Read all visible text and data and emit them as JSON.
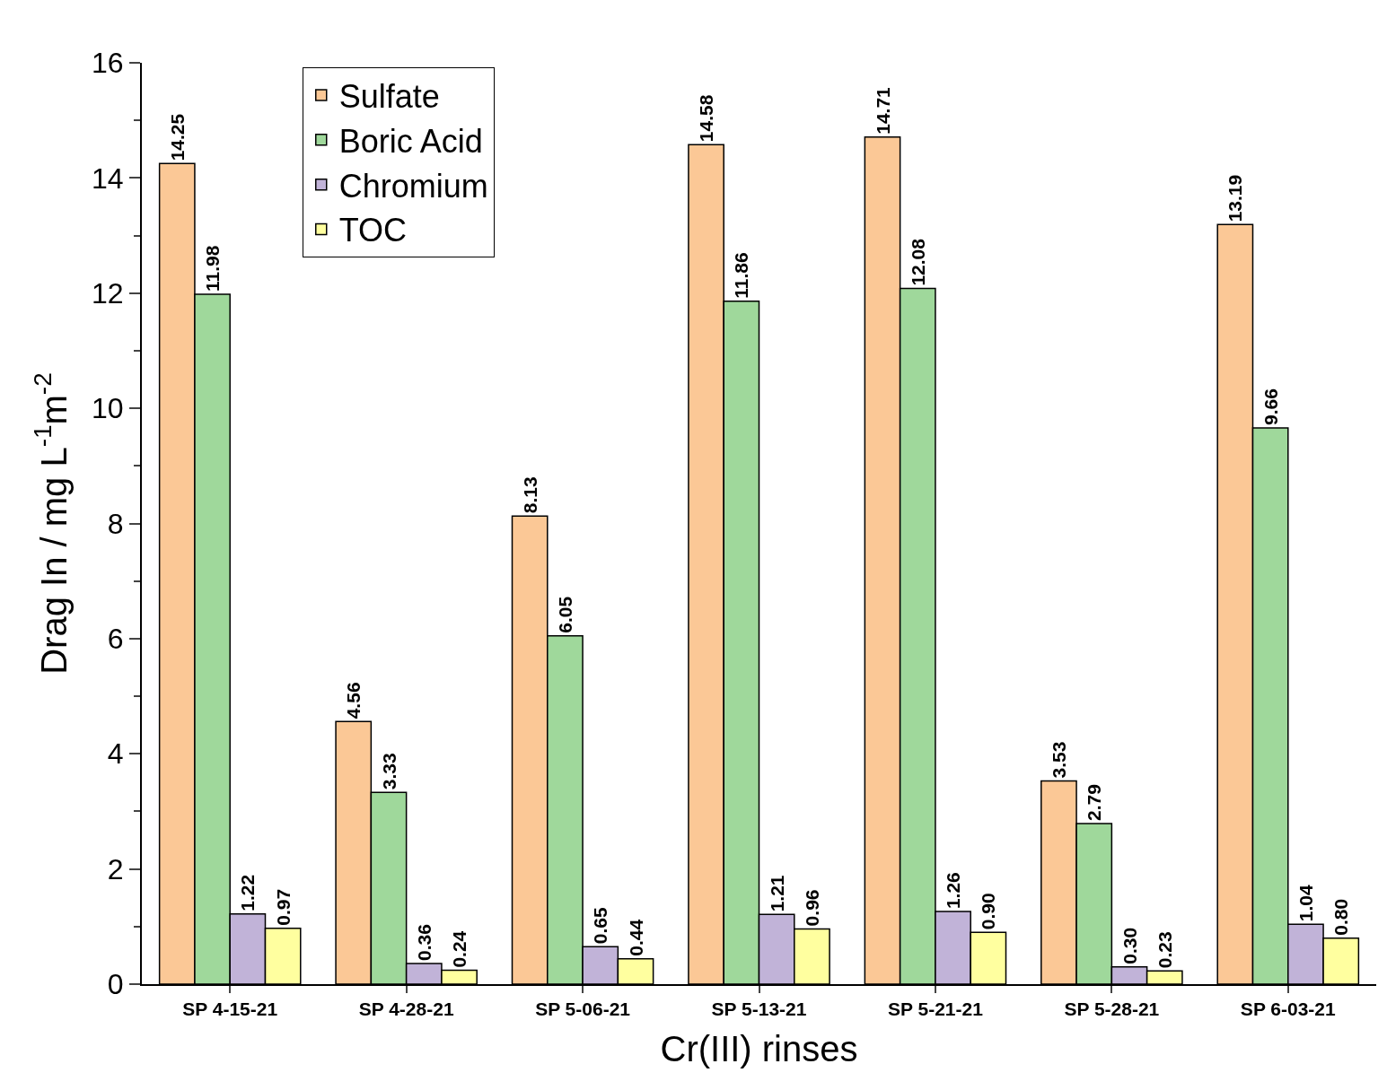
{
  "chart_data": {
    "type": "bar",
    "xlabel": "Cr(III) rinses",
    "ylabel": "Drag In / mg L$^{-1}$m$^{-2}$",
    "categories": [
      "SP 4-15-21",
      "SP 4-28-21",
      "SP 5-06-21",
      "SP 5-13-21",
      "SP 5-21-21",
      "SP 5-28-21",
      "SP 6-03-21"
    ],
    "series": [
      {
        "name": "Sulfate",
        "color": "#fbc896",
        "values": [
          14.25,
          4.56,
          8.13,
          14.58,
          14.71,
          3.53,
          13.19
        ],
        "value_labels": [
          "14.25",
          "4.56",
          "8.13",
          "14.58",
          "14.71",
          "3.53",
          "13.19"
        ]
      },
      {
        "name": "Boric Acid",
        "color": "#9fd89b",
        "values": [
          11.98,
          3.33,
          6.05,
          11.86,
          12.08,
          2.79,
          9.66
        ],
        "value_labels": [
          "11.98",
          "3.33",
          "6.05",
          "11.86",
          "12.08",
          "2.79",
          "9.66"
        ]
      },
      {
        "name": "Chromium",
        "color": "#c1b3d8",
        "values": [
          1.22,
          0.36,
          0.65,
          1.21,
          1.26,
          0.3,
          1.04
        ],
        "value_labels": [
          "1.22",
          "0.36",
          "0.65",
          "1.21",
          "1.26",
          "0.30",
          "1.04"
        ]
      },
      {
        "name": "TOC",
        "color": "#ffff9f",
        "values": [
          0.97,
          0.24,
          0.44,
          0.96,
          0.9,
          0.23,
          0.8
        ],
        "value_labels": [
          "0.97",
          "0.24",
          "0.44",
          "0.96",
          "0.90",
          "0.23",
          "0.80"
        ]
      }
    ],
    "ylim": [
      0,
      16
    ],
    "yticks": [
      0,
      2,
      4,
      6,
      8,
      10,
      12,
      14,
      16
    ],
    "legend": "top left"
  }
}
